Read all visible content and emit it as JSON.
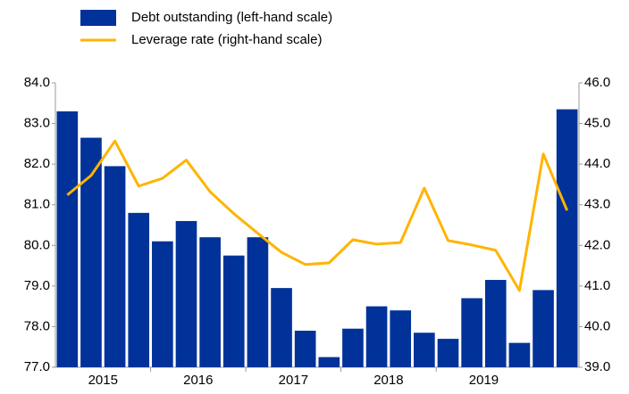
{
  "chart_data": {
    "type": "bar-line",
    "categories": [
      "2015",
      null,
      null,
      null,
      "2016",
      null,
      null,
      null,
      "2017",
      null,
      null,
      null,
      "2018",
      null,
      null,
      null,
      "2019",
      null,
      null,
      null,
      null,
      null
    ],
    "series": [
      {
        "name": "Debt outstanding (left-hand scale)",
        "color": "#003299",
        "type": "bar",
        "axis": "y",
        "values": [
          83.3,
          82.65,
          81.95,
          80.8,
          80.1,
          80.6,
          80.2,
          79.75,
          80.2,
          78.95,
          77.9,
          77.25,
          77.95,
          78.5,
          78.4,
          77.85,
          77.7,
          78.7,
          79.15,
          77.6,
          78.9,
          83.35
        ]
      },
      {
        "name": "Leverage rate (right-hand scale)",
        "color": "#ffb400",
        "type": "line",
        "axis": "y2",
        "values": [
          43.24,
          43.72,
          44.57,
          43.46,
          43.65,
          44.1,
          43.32,
          42.78,
          42.3,
          41.83,
          41.53,
          41.57,
          42.14,
          42.03,
          42.07,
          43.41,
          42.12,
          42.01,
          41.88,
          40.89,
          44.25,
          42.86
        ]
      }
    ],
    "ylim": [
      77,
      84
    ],
    "yticks": [
      {
        "value": 77,
        "label": "77.0"
      },
      {
        "value": 78,
        "label": "78.0"
      },
      {
        "value": 79,
        "label": "79.0"
      },
      {
        "value": 80,
        "label": "80.0"
      },
      {
        "value": 81,
        "label": "81.0"
      },
      {
        "value": 82,
        "label": "82.0"
      },
      {
        "value": 83,
        "label": "83.0"
      },
      {
        "value": 84,
        "label": "84.0"
      }
    ],
    "y2lim": [
      39,
      46
    ],
    "y2ticks": [
      {
        "value": 39,
        "label": "39.0"
      },
      {
        "value": 40,
        "label": "40.0"
      },
      {
        "value": 41,
        "label": "41.0"
      },
      {
        "value": 42,
        "label": "42.0"
      },
      {
        "value": 43,
        "label": "43.0"
      },
      {
        "value": 44,
        "label": "44.0"
      },
      {
        "value": 45,
        "label": "45.0"
      },
      {
        "value": 46,
        "label": "46.0"
      }
    ],
    "grid": false
  }
}
